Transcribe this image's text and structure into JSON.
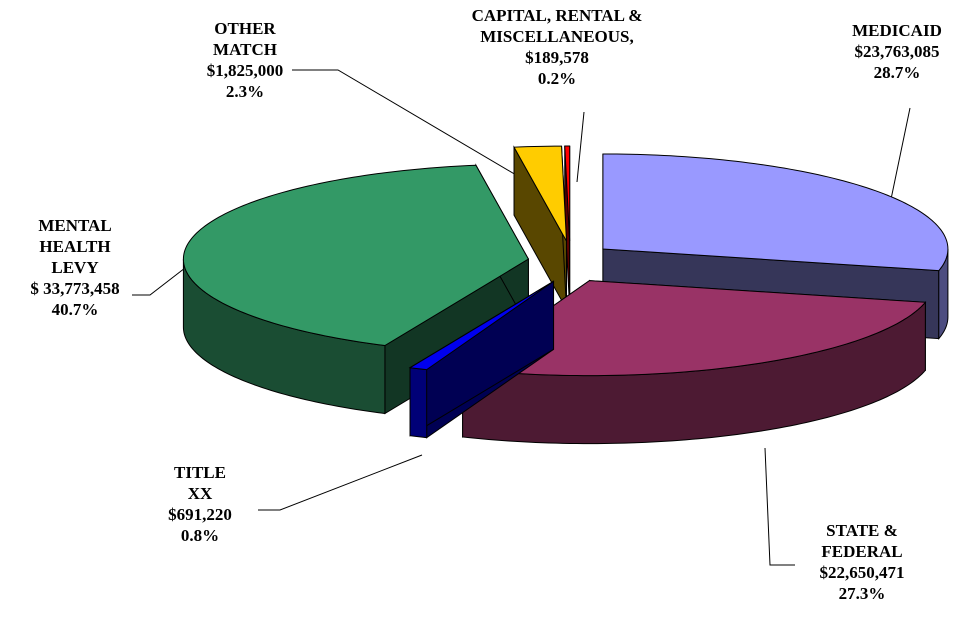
{
  "chart_data": {
    "type": "pie",
    "categories": [
      "MEDICAID",
      "STATE & FEDERAL",
      "TITLE XX",
      "MENTAL HEALTH LEVY",
      "OTHER MATCH",
      "CAPITAL, RENTAL & MISCELLANEOUS,"
    ],
    "values": [
      23763085,
      22650471,
      691220,
      33773458,
      1825000,
      189578
    ],
    "value_labels": [
      "$23,763,085",
      "$22,650,471",
      "$691,220",
      "$ 33,773,458",
      "$1,825,000",
      "$189,578"
    ],
    "percents": [
      28.7,
      27.3,
      0.8,
      40.7,
      2.3,
      0.2
    ],
    "percent_labels": [
      "28.7%",
      "27.3%",
      "0.8%",
      "40.7%",
      "2.3%",
      "0.2%"
    ],
    "colors": [
      "#9999ff",
      "#993366",
      "#0000ee",
      "#339966",
      "#ffcc00",
      "#ff0000"
    ]
  }
}
